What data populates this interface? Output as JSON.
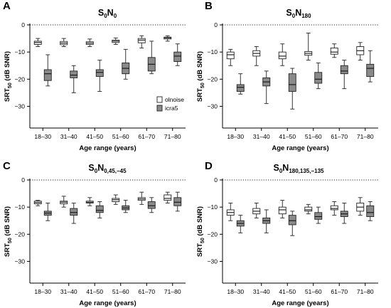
{
  "chart_data": [
    {
      "type": "box",
      "panel_letter": "A",
      "title_parts": [
        [
          "S",
          "0"
        ],
        [
          "N",
          "0"
        ]
      ],
      "xlabel": "Age range (years)",
      "ylabel_parts": [
        "SRT",
        "50",
        " (dB  SNR)"
      ],
      "ylim": [
        -38,
        0
      ],
      "yticks": [
        0,
        -10,
        -20,
        -30
      ],
      "reference_line": 0,
      "categories": [
        "18–30",
        "31–40",
        "41–50",
        "51–60",
        "61–70",
        "71–80"
      ],
      "legend": true,
      "series": [
        {
          "name": "olnoise",
          "fill": "#ffffff",
          "boxes": [
            {
              "min": -8.0,
              "q1": -7.2,
              "median": -6.5,
              "q3": -6.0,
              "max": -5.0
            },
            {
              "min": -8.0,
              "q1": -7.3,
              "median": -6.7,
              "q3": -6.1,
              "max": -5.0
            },
            {
              "min": -8.0,
              "q1": -7.2,
              "median": -6.7,
              "q3": -6.2,
              "max": -5.2
            },
            {
              "min": -7.2,
              "q1": -6.5,
              "median": -6.0,
              "q3": -5.6,
              "max": -4.8
            },
            {
              "min": -8.5,
              "q1": -6.6,
              "median": -5.6,
              "q3": -5.0,
              "max": -4.0
            },
            {
              "min": -6.0,
              "q1": -5.2,
              "median": -4.8,
              "q3": -4.5,
              "max": -4.0
            }
          ]
        },
        {
          "name": "icra5",
          "fill": "#8a8a8a",
          "boxes": [
            {
              "min": -22.5,
              "q1": -20.5,
              "median": -18.0,
              "q3": -16.5,
              "max": -11.0
            },
            {
              "min": -25.0,
              "q1": -19.5,
              "median": -18.5,
              "q3": -17.0,
              "max": -15.0
            },
            {
              "min": -24.5,
              "q1": -19.0,
              "median": -17.5,
              "q3": -16.5,
              "max": -13.0
            },
            {
              "min": -20.0,
              "q1": -18.0,
              "median": -16.0,
              "q3": -14.0,
              "max": -9.0
            },
            {
              "min": -18.0,
              "q1": -17.0,
              "median": -14.5,
              "q3": -12.0,
              "max": -6.0
            },
            {
              "min": -15.0,
              "q1": -13.5,
              "median": -11.5,
              "q3": -10.0,
              "max": -7.0
            }
          ]
        }
      ]
    },
    {
      "type": "box",
      "panel_letter": "B",
      "title_parts": [
        [
          "S",
          "0"
        ],
        [
          "N",
          "180"
        ]
      ],
      "xlabel": "Age range (years)",
      "ylabel_parts": [
        "SRT",
        "50",
        " (dB  SNR)"
      ],
      "ylim": [
        -38,
        0
      ],
      "yticks": [
        0,
        -10,
        -20,
        -30
      ],
      "reference_line": 0,
      "categories": [
        "18–30",
        "31–40",
        "41–50",
        "51–60",
        "61–70",
        "71–80"
      ],
      "legend": false,
      "series": [
        {
          "name": "olnoise",
          "fill": "#ffffff",
          "boxes": [
            {
              "min": -15.0,
              "q1": -12.5,
              "median": -11.0,
              "q3": -10.0,
              "max": -9.0
            },
            {
              "min": -15.0,
              "q1": -11.5,
              "median": -10.5,
              "q3": -9.5,
              "max": -8.0
            },
            {
              "min": -15.0,
              "q1": -12.5,
              "median": -11.5,
              "q3": -10.0,
              "max": -7.0
            },
            {
              "min": -13.0,
              "q1": -11.2,
              "median": -10.5,
              "q3": -9.8,
              "max": -3.0
            },
            {
              "min": -12.0,
              "q1": -10.8,
              "median": -10.0,
              "q3": -8.5,
              "max": -7.0
            },
            {
              "min": -13.0,
              "q1": -11.0,
              "median": -9.5,
              "q3": -8.0,
              "max": -6.5
            }
          ]
        },
        {
          "name": "icra5",
          "fill": "#8a8a8a",
          "boxes": [
            {
              "min": -25.5,
              "q1": -24.5,
              "median": -23.0,
              "q3": -22.0,
              "max": -18.0
            },
            {
              "min": -29.0,
              "q1": -22.5,
              "median": -21.0,
              "q3": -19.5,
              "max": -17.0
            },
            {
              "min": -31.0,
              "q1": -24.5,
              "median": -22.0,
              "q3": -18.0,
              "max": -16.0
            },
            {
              "min": -23.5,
              "q1": -21.5,
              "median": -20.0,
              "q3": -17.5,
              "max": -14.0
            },
            {
              "min": -23.5,
              "q1": -18.0,
              "median": -17.0,
              "q3": -15.0,
              "max": -13.0
            },
            {
              "min": -21.0,
              "q1": -19.0,
              "median": -16.0,
              "q3": -14.5,
              "max": -9.5
            }
          ]
        }
      ]
    },
    {
      "type": "box",
      "panel_letter": "C",
      "title_parts": [
        [
          "S",
          "0"
        ],
        [
          "N",
          "0,45,−45"
        ]
      ],
      "xlabel": "Age range (years)",
      "ylabel_parts": [
        "SRT",
        "50",
        " (dB  SNR)"
      ],
      "ylim": [
        -38,
        0
      ],
      "yticks": [
        0,
        -10,
        -20,
        -30
      ],
      "reference_line": 0,
      "categories": [
        "18–30",
        "31–40",
        "41–50",
        "51–60",
        "61–70",
        "71–80"
      ],
      "legend": false,
      "series": [
        {
          "name": "olnoise",
          "fill": "#ffffff",
          "boxes": [
            {
              "min": -9.5,
              "q1": -8.8,
              "median": -8.3,
              "q3": -7.8,
              "max": -7.5
            },
            {
              "min": -10.0,
              "q1": -8.8,
              "median": -8.2,
              "q3": -7.8,
              "max": -6.0
            },
            {
              "min": -9.5,
              "q1": -8.5,
              "median": -8.2,
              "q3": -7.8,
              "max": -6.5
            },
            {
              "min": -9.0,
              "q1": -8.0,
              "median": -7.3,
              "q3": -6.8,
              "max": -5.5
            },
            {
              "min": -9.0,
              "q1": -7.5,
              "median": -7.0,
              "q3": -6.5,
              "max": -4.5
            },
            {
              "min": -8.5,
              "q1": -7.5,
              "median": -6.8,
              "q3": -5.5,
              "max": -4.5
            }
          ]
        },
        {
          "name": "icra5",
          "fill": "#8a8a8a",
          "boxes": [
            {
              "min": -15.0,
              "q1": -13.0,
              "median": -12.2,
              "q3": -11.5,
              "max": -8.5
            },
            {
              "min": -16.0,
              "q1": -13.0,
              "median": -12.0,
              "q3": -10.5,
              "max": -8.5
            },
            {
              "min": -14.0,
              "q1": -12.0,
              "median": -11.2,
              "q3": -9.5,
              "max": -8.0
            },
            {
              "min": -12.0,
              "q1": -11.0,
              "median": -10.3,
              "q3": -9.5,
              "max": -7.5
            },
            {
              "min": -12.0,
              "q1": -10.5,
              "median": -9.5,
              "q3": -8.0,
              "max": -6.5
            },
            {
              "min": -11.5,
              "q1": -9.5,
              "median": -8.2,
              "q3": -6.5,
              "max": -4.5
            }
          ]
        }
      ]
    },
    {
      "type": "box",
      "panel_letter": "D",
      "title_parts": [
        [
          "S",
          "0"
        ],
        [
          "N",
          "180,135,−135"
        ]
      ],
      "xlabel": "Age range (years)",
      "ylabel_parts": [
        "SRT",
        "50",
        " (dB  SNR)"
      ],
      "ylim": [
        -38,
        0
      ],
      "yticks": [
        0,
        -10,
        -20,
        -30
      ],
      "reference_line": 0,
      "categories": [
        "18–30",
        "31–40",
        "41–50",
        "51–60",
        "61–70",
        "71–80"
      ],
      "legend": false,
      "series": [
        {
          "name": "olnoise",
          "fill": "#ffffff",
          "boxes": [
            {
              "min": -15.0,
              "q1": -13.0,
              "median": -12.0,
              "q3": -11.0,
              "max": -8.5
            },
            {
              "min": -14.0,
              "q1": -12.5,
              "median": -11.5,
              "q3": -10.5,
              "max": -8.5
            },
            {
              "min": -14.0,
              "q1": -12.5,
              "median": -11.0,
              "q3": -10.0,
              "max": -7.5
            },
            {
              "min": -12.5,
              "q1": -11.5,
              "median": -11.0,
              "q3": -10.0,
              "max": -9.0
            },
            {
              "min": -13.0,
              "q1": -11.0,
              "median": -10.5,
              "q3": -9.5,
              "max": -8.0
            },
            {
              "min": -13.0,
              "q1": -11.5,
              "median": -10.0,
              "q3": -8.5,
              "max": -6.5
            }
          ]
        },
        {
          "name": "icra5",
          "fill": "#8a8a8a",
          "boxes": [
            {
              "min": -19.5,
              "q1": -17.0,
              "median": -16.0,
              "q3": -15.0,
              "max": -13.0
            },
            {
              "min": -19.5,
              "q1": -16.0,
              "median": -15.0,
              "q3": -14.0,
              "max": -11.0
            },
            {
              "min": -20.5,
              "q1": -16.5,
              "median": -15.0,
              "q3": -13.0,
              "max": -11.5
            },
            {
              "min": -16.0,
              "q1": -14.5,
              "median": -13.5,
              "q3": -12.0,
              "max": -10.0
            },
            {
              "min": -16.0,
              "q1": -13.5,
              "median": -12.5,
              "q3": -11.5,
              "max": -8.5
            },
            {
              "min": -15.0,
              "q1": -13.5,
              "median": -12.0,
              "q3": -9.5,
              "max": -8.0
            }
          ]
        }
      ]
    }
  ]
}
